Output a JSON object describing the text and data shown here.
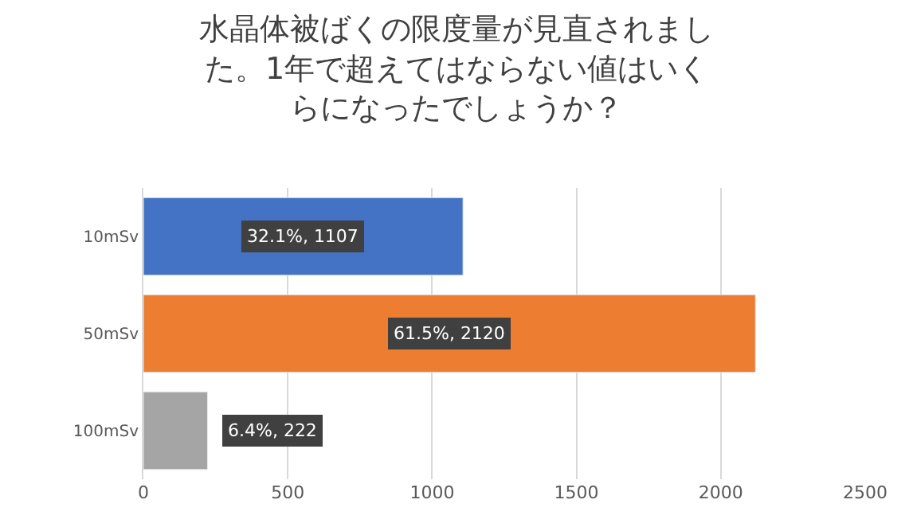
{
  "chart_data": {
    "type": "bar",
    "orientation": "horizontal",
    "title": "水晶体被ばくの限度量が見直されました。1年で超えてはならない値はいくらになったでしょうか？",
    "categories": [
      "10mSv",
      "50mSv",
      "100mSv"
    ],
    "values": [
      1107,
      2120,
      222
    ],
    "colors": [
      "#4472c4",
      "#ed7d31",
      "#a5a5a5"
    ],
    "value_labels": [
      "32.1%, 1107",
      "61.5%, 2120",
      "6.4%, 222"
    ],
    "xlim": [
      0,
      2500
    ],
    "xticks": [
      0,
      500,
      1000,
      1500,
      2000,
      2500
    ],
    "grid": "x"
  }
}
